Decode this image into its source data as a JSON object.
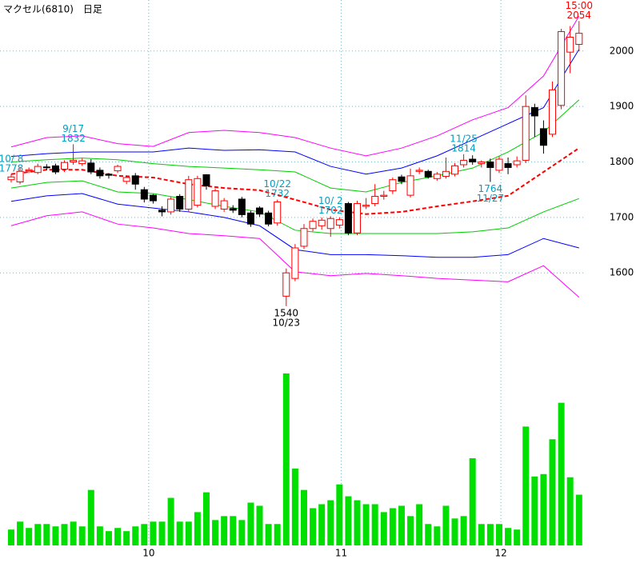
{
  "chart_data": [
    {
      "type": "candlestick",
      "title": "マクセル(6810)　日足",
      "open": [
        1768,
        1764,
        1784,
        1781,
        1791,
        1793,
        1787,
        1800,
        1797,
        1798,
        1785,
        1778,
        1784,
        1765,
        1775,
        1750,
        1740,
        1713,
        1710,
        1738,
        1715,
        1722,
        1777,
        1720,
        1715,
        1716,
        1733,
        1708,
        1717,
        1708,
        1690,
        1558,
        1590,
        1648,
        1680,
        1685,
        1680,
        1686,
        1725,
        1672,
        1720,
        1725,
        1738,
        1748,
        1773,
        1740,
        1783,
        1783,
        1770,
        1774,
        1778,
        1795,
        1805,
        1797,
        1800,
        1785,
        1797,
        1795,
        1803,
        1898,
        1860,
        1850,
        1902,
        1998,
        2012
      ],
      "high": [
        1778,
        1790,
        1790,
        1797,
        1796,
        1797,
        1803,
        1832,
        1806,
        1805,
        1790,
        1780,
        1795,
        1776,
        1780,
        1755,
        1742,
        1720,
        1737,
        1742,
        1775,
        1775,
        1778,
        1752,
        1735,
        1722,
        1737,
        1712,
        1720,
        1712,
        1732,
        1608,
        1652,
        1688,
        1698,
        1700,
        1702,
        1700,
        1728,
        1730,
        1735,
        1760,
        1748,
        1772,
        1777,
        1788,
        1790,
        1786,
        1782,
        1808,
        1798,
        1814,
        1812,
        1803,
        1806,
        1810,
        1808,
        1810,
        1920,
        1905,
        1875,
        1945,
        2040,
        2045,
        2054
      ],
      "low": [
        1763,
        1760,
        1780,
        1778,
        1785,
        1778,
        1782,
        1795,
        1793,
        1778,
        1770,
        1770,
        1780,
        1760,
        1750,
        1727,
        1725,
        1702,
        1705,
        1710,
        1710,
        1718,
        1750,
        1715,
        1710,
        1708,
        1700,
        1683,
        1701,
        1684,
        1685,
        1540,
        1585,
        1643,
        1675,
        1678,
        1665,
        1680,
        1668,
        1668,
        1715,
        1720,
        1732,
        1742,
        1760,
        1736,
        1778,
        1770,
        1766,
        1770,
        1774,
        1790,
        1795,
        1790,
        1764,
        1780,
        1778,
        1790,
        1798,
        1845,
        1815,
        1845,
        1895,
        1960,
        2000
      ],
      "close": [
        1773,
        1783,
        1786,
        1792,
        1790,
        1782,
        1799,
        1803,
        1802,
        1782,
        1775,
        1776,
        1792,
        1772,
        1760,
        1733,
        1730,
        1710,
        1733,
        1715,
        1768,
        1770,
        1757,
        1748,
        1730,
        1713,
        1705,
        1688,
        1706,
        1688,
        1728,
        1600,
        1645,
        1680,
        1693,
        1695,
        1698,
        1696,
        1672,
        1725,
        1722,
        1738,
        1740,
        1768,
        1765,
        1775,
        1785,
        1773,
        1778,
        1783,
        1793,
        1803,
        1800,
        1800,
        1790,
        1805,
        1790,
        1802,
        1900,
        1883,
        1830,
        1930,
        2035,
        2025,
        2032
      ],
      "up_color": "#ff0000",
      "down_color": "#000000",
      "xlim": [
        -1.26,
        64.56
      ],
      "ylim": [
        1472,
        2092
      ],
      "yticks": [
        1600,
        1700,
        1800,
        1900,
        2000
      ],
      "grid": true,
      "line_x": [
        0,
        4,
        8,
        12,
        16,
        20,
        24,
        28,
        32,
        36,
        40,
        44,
        48,
        52,
        56,
        60,
        64
      ],
      "lines": [
        {
          "color": "#ff00ff",
          "dashed": false,
          "values": [
            1827,
            1844,
            1847,
            1833,
            1828,
            1853,
            1857,
            1853,
            1844,
            1825,
            1811,
            1825,
            1847,
            1876,
            1898,
            1955,
            2063
          ]
        },
        {
          "color": "#0000ff",
          "dashed": false,
          "values": [
            1810,
            1815,
            1818,
            1818,
            1818,
            1825,
            1821,
            1822,
            1818,
            1792,
            1778,
            1789,
            1811,
            1840,
            1869,
            1898,
            2003
          ]
        },
        {
          "color": "#00cc00",
          "dashed": false,
          "values": [
            1800,
            1804,
            1807,
            1804,
            1797,
            1792,
            1789,
            1786,
            1782,
            1753,
            1746,
            1763,
            1775,
            1789,
            1818,
            1854,
            1912
          ]
        },
        {
          "color": "#ff0000",
          "dashed": true,
          "values": [
            1778,
            1786,
            1786,
            1775,
            1772,
            1760,
            1753,
            1749,
            1732,
            1714,
            1706,
            1710,
            1720,
            1729,
            1739,
            1782,
            1825
          ]
        },
        {
          "color": "#00cc00",
          "dashed": false,
          "values": [
            1753,
            1763,
            1766,
            1746,
            1743,
            1732,
            1720,
            1710,
            1677,
            1671,
            1671,
            1671,
            1671,
            1674,
            1681,
            1710,
            1734
          ]
        },
        {
          "color": "#0000ff",
          "dashed": false,
          "values": [
            1729,
            1739,
            1743,
            1724,
            1717,
            1710,
            1700,
            1685,
            1642,
            1633,
            1633,
            1631,
            1628,
            1628,
            1633,
            1662,
            1645
          ]
        },
        {
          "color": "#ff00ff",
          "dashed": false,
          "values": [
            1685,
            1703,
            1710,
            1688,
            1681,
            1671,
            1667,
            1662,
            1602,
            1595,
            1599,
            1595,
            1590,
            1587,
            1584,
            1613,
            1556
          ]
        }
      ],
      "annotations": [
        {
          "label": "9/17",
          "value": 1832,
          "color": "#00a0c0"
        },
        {
          "label": "10/ 2",
          "value": 1702,
          "color": "#00a0c0"
        },
        {
          "label": "10/ 8",
          "value": 1778,
          "color": "#00a0c0"
        },
        {
          "label": "10/22",
          "value": 1732,
          "color": "#00a0c0"
        },
        {
          "label": "10/23",
          "value": 1540,
          "color": "#000000"
        },
        {
          "label": "11/25",
          "value": 1814,
          "color": "#00a0c0"
        },
        {
          "label": "11/27",
          "value": 1764,
          "color": "#00a0c0"
        },
        {
          "label": "15:00",
          "value": 2054,
          "color": "#ff0000"
        }
      ]
    },
    {
      "type": "bar",
      "values": [
        20,
        30,
        22,
        27,
        27,
        24,
        27,
        30,
        24,
        70,
        24,
        18,
        22,
        18,
        24,
        27,
        30,
        30,
        60,
        30,
        30,
        42,
        67,
        32,
        37,
        37,
        32,
        54,
        50,
        27,
        27,
        217,
        97,
        70,
        47,
        52,
        57,
        77,
        62,
        57,
        52,
        52,
        42,
        47,
        50,
        37,
        52,
        27,
        24,
        50,
        34,
        37,
        110,
        27,
        27,
        27,
        22,
        20,
        150,
        87,
        90,
        134,
        180,
        86,
        64
      ],
      "color": "#00e000",
      "xlim": [
        -1.26,
        64.56
      ],
      "ylim": [
        0,
        220
      ],
      "xticks": [
        {
          "value": 15.5,
          "label": "10"
        },
        {
          "value": 37.2,
          "label": "11"
        },
        {
          "value": 55.2,
          "label": "12"
        }
      ],
      "grid": true
    }
  ]
}
